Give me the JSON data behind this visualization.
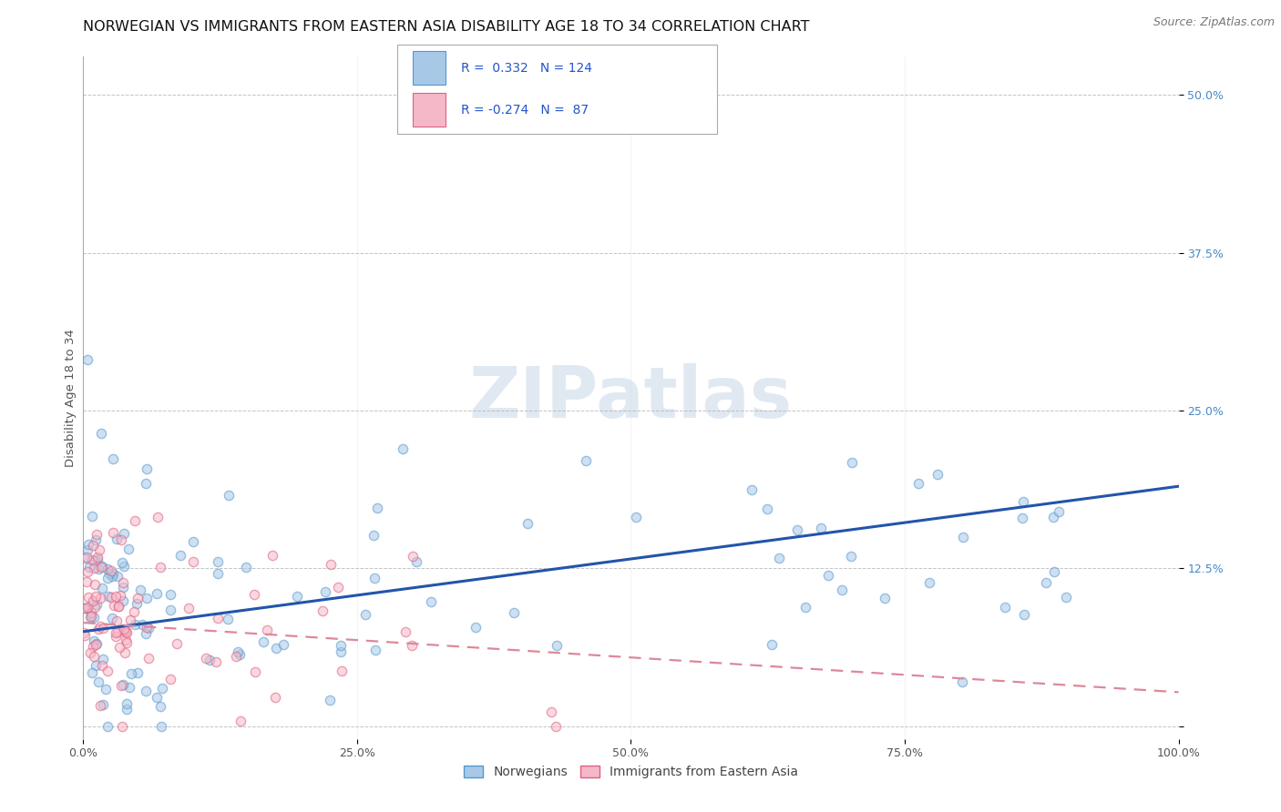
{
  "title": "NORWEGIAN VS IMMIGRANTS FROM EASTERN ASIA DISABILITY AGE 18 TO 34 CORRELATION CHART",
  "source": "Source: ZipAtlas.com",
  "ylabel": "Disability Age 18 to 34",
  "xlim": [
    0.0,
    100.0
  ],
  "ylim": [
    -1.0,
    53.0
  ],
  "yticks": [
    0.0,
    12.5,
    25.0,
    37.5,
    50.0
  ],
  "xticks": [
    0.0,
    25.0,
    50.0,
    75.0,
    100.0
  ],
  "xtick_labels": [
    "0.0%",
    "25.0%",
    "50.0%",
    "75.0%",
    "100.0%"
  ],
  "ytick_labels": [
    "",
    "12.5%",
    "25.0%",
    "37.5%",
    "50.0%"
  ],
  "blue_color": "#a8c8e8",
  "blue_edge_color": "#5599cc",
  "pink_color": "#f5b8c8",
  "pink_edge_color": "#e06080",
  "trend_blue_color": "#2255aa",
  "trend_pink_color": "#dd8899",
  "R_blue": 0.332,
  "N_blue": 124,
  "R_pink": -0.274,
  "N_pink": 87,
  "legend_label_blue": "Norwegians",
  "legend_label_pink": "Immigrants from Eastern Asia",
  "watermark": "ZIPatlas",
  "title_fontsize": 11.5,
  "source_fontsize": 9,
  "label_fontsize": 9.5,
  "tick_fontsize": 9,
  "legend_fontsize": 10,
  "ytick_color": "#4488cc",
  "xtick_color": "#555555",
  "ylabel_color": "#555555",
  "seed": 42,
  "scatter_size": 55,
  "scatter_alpha": 0.55,
  "scatter_linewidth": 1.0
}
